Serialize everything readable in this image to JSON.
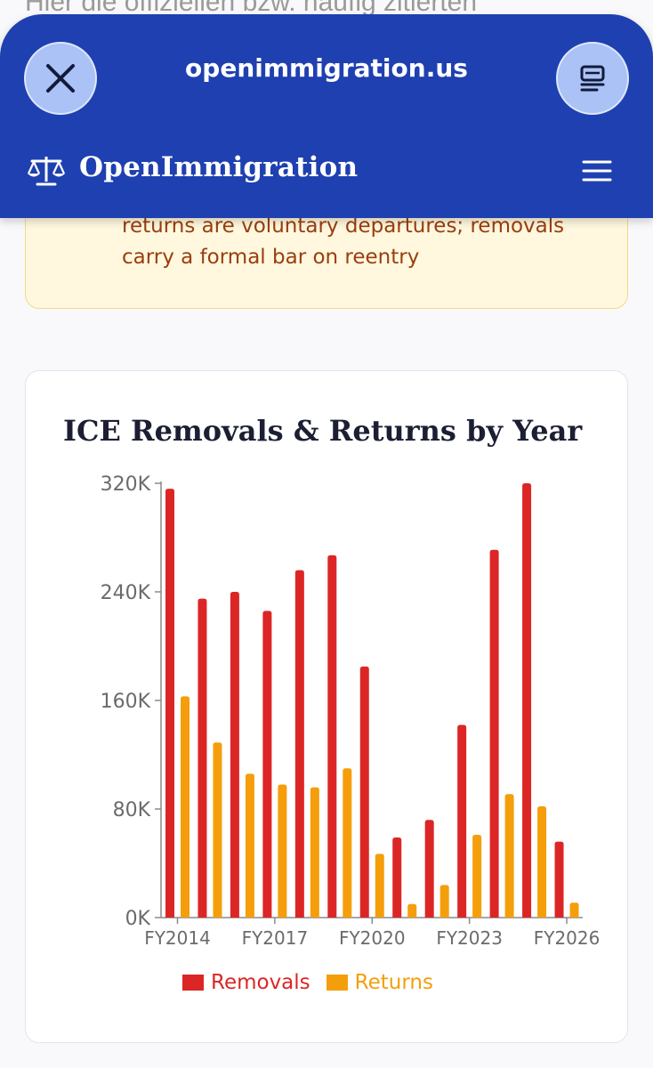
{
  "background_text": "Hier die offiziellen bzw. häufig zitierten",
  "browser": {
    "url": "openimmigration.us",
    "close_icon": "close-icon",
    "reader_icon": "reader-mode-icon"
  },
  "site": {
    "brand": "OpenImmigration",
    "brand_icon": "scales-icon",
    "menu_icon": "hamburger-menu-icon"
  },
  "callout": {
    "text": "returns are voluntary departures; removals carry a formal bar on reentry"
  },
  "colors": {
    "browser_bar": "#1f40b0",
    "removals": "#dc2626",
    "returns": "#f59e0b",
    "callout_bg": "#fff8de",
    "callout_text": "#9a3e10"
  },
  "chart_data": {
    "type": "bar",
    "title": "ICE Removals & Returns by Year",
    "categories": [
      "FY2014",
      "FY2015",
      "FY2016",
      "FY2017",
      "FY2018",
      "FY2019",
      "FY2020",
      "FY2021",
      "FY2022",
      "FY2023",
      "FY2024",
      "FY2025",
      "FY2026"
    ],
    "x_tick_labels": [
      "FY2014",
      "FY2017",
      "FY2020",
      "FY2023",
      "FY2026"
    ],
    "series": [
      {
        "name": "Removals",
        "color": "#dc2626",
        "values": [
          316000,
          235000,
          240000,
          226000,
          256000,
          267000,
          185000,
          59000,
          72000,
          142000,
          271000,
          320000,
          56000
        ]
      },
      {
        "name": "Returns",
        "color": "#f59e0b",
        "values": [
          163000,
          129000,
          106000,
          98000,
          96000,
          110000,
          47000,
          10000,
          24000,
          61000,
          91000,
          82000,
          11000
        ]
      }
    ],
    "yticks": [
      "0K",
      "80K",
      "160K",
      "240K",
      "320K"
    ],
    "ylim": [
      0,
      320000
    ],
    "legend_position": "bottom"
  }
}
